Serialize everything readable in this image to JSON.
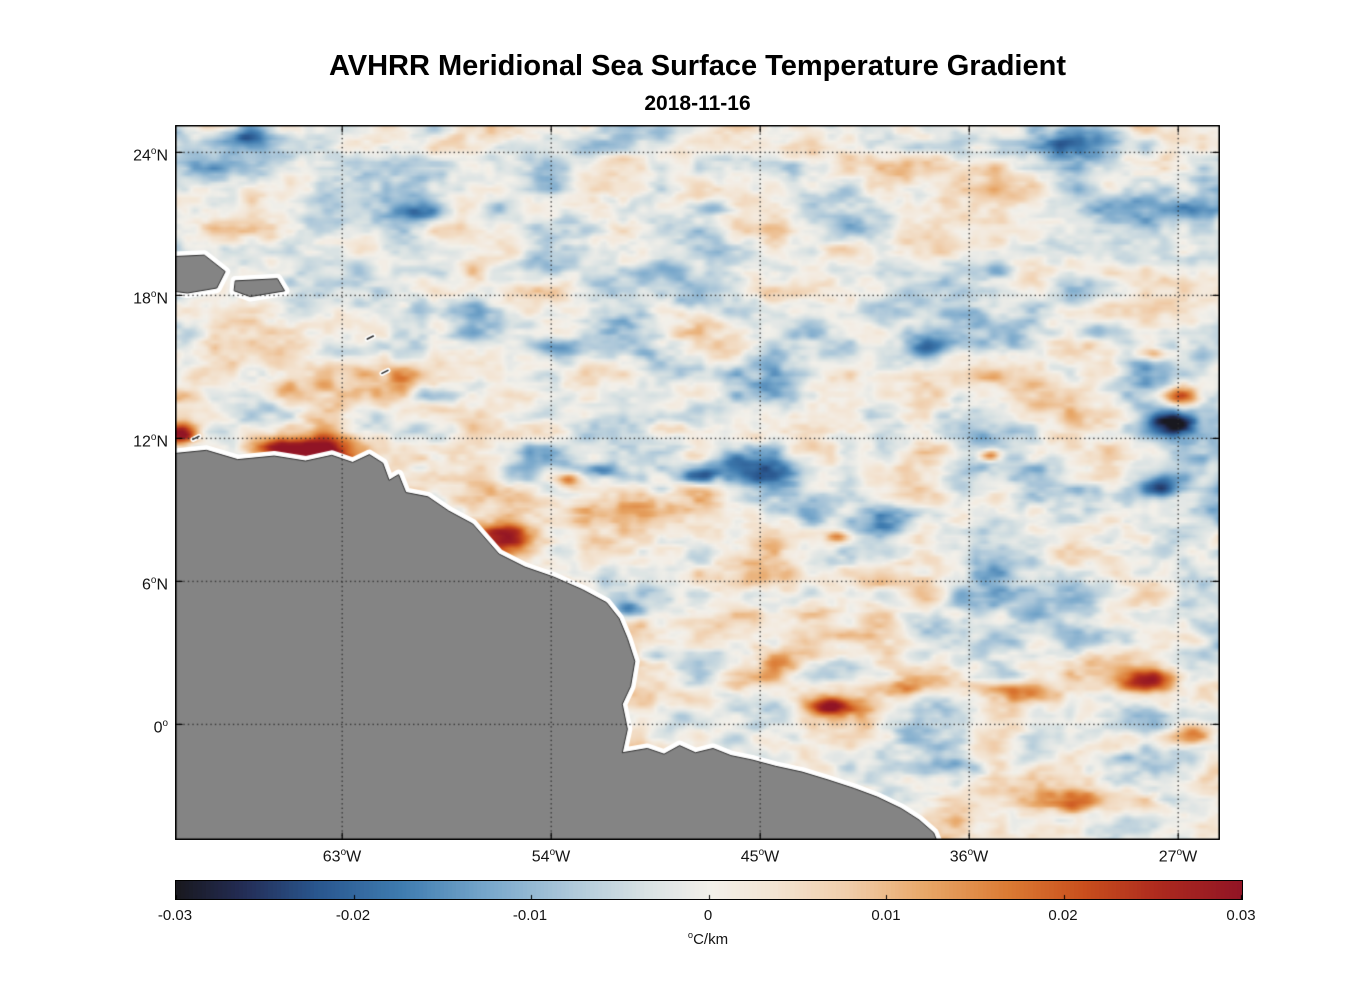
{
  "figure": {
    "title": "AVHRR Meridional Sea Surface Temperature Gradient",
    "subtitle": "2018-11-16"
  },
  "chart_data": {
    "type": "heatmap",
    "title": "AVHRR Meridional Sea Surface Temperature Gradient",
    "subtitle": "2018-11-16",
    "x_axis": {
      "tick_labels": [
        "63°W",
        "54°W",
        "45°W",
        "36°W",
        "27°W"
      ],
      "tick_lon_w": [
        63,
        54,
        45,
        36,
        27
      ],
      "range_lon_w": [
        70.2,
        25.2
      ]
    },
    "y_axis": {
      "tick_labels": [
        "24°N",
        "18°N",
        "12°N",
        "6°N",
        "0°"
      ],
      "tick_lat_n": [
        24,
        18,
        12,
        6,
        0
      ],
      "range_lat_n": [
        25.15,
        -4.85
      ]
    },
    "grid": {
      "style": "dotted",
      "color": "rgba(45,45,45,0.9)"
    },
    "colorbar": {
      "label": "°C/km",
      "min": -0.03,
      "max": 0.03,
      "tick_labels": [
        "-0.03",
        "-0.02",
        "-0.01",
        "0",
        "0.01",
        "0.02",
        "0.03"
      ],
      "stops": [
        [
          0,
          "#191920"
        ],
        [
          0.06,
          "#232c54"
        ],
        [
          0.13,
          "#29568e"
        ],
        [
          0.21,
          "#3f7cb0"
        ],
        [
          0.29,
          "#77a7cb"
        ],
        [
          0.37,
          "#afc9da"
        ],
        [
          0.44,
          "#d9e2e3"
        ],
        [
          0.5,
          "#f3f0ea"
        ],
        [
          0.56,
          "#f3e4d2"
        ],
        [
          0.63,
          "#f0cdaa"
        ],
        [
          0.7,
          "#e8a869"
        ],
        [
          0.78,
          "#db7a33"
        ],
        [
          0.85,
          "#c94f1d"
        ],
        [
          0.92,
          "#ad2a1e"
        ],
        [
          1,
          "#911425"
        ]
      ]
    },
    "land": {
      "fill": "#848484",
      "edge": "#2e2e2e",
      "coast_halo": "#ffffff",
      "polygons": [
        {
          "name": "south-america",
          "lonlat": [
            [
              71,
              11.29
            ],
            [
              68.85,
              11.5
            ],
            [
              67.5,
              11.11
            ],
            [
              65.93,
              11.26
            ],
            [
              64.58,
              11.05
            ],
            [
              63.45,
              11.29
            ],
            [
              62.55,
              10.99
            ],
            [
              61.83,
              11.32
            ],
            [
              61.25,
              10.96
            ],
            [
              60.98,
              10.24
            ],
            [
              60.57,
              10.48
            ],
            [
              60.26,
              9.73
            ],
            [
              59.31,
              9.55
            ],
            [
              58.41,
              8.95
            ],
            [
              57.38,
              8.41
            ],
            [
              56.25,
              7.15
            ],
            [
              55.13,
              6.6
            ],
            [
              53.91,
              6.19
            ],
            [
              52.65,
              5.65
            ],
            [
              51.62,
              5.11
            ],
            [
              51.08,
              4.45
            ],
            [
              50.72,
              3.61
            ],
            [
              50.4,
              2.65
            ],
            [
              50.58,
              1.6
            ],
            [
              50.94,
              0.85
            ],
            [
              50.72,
              -0.2
            ],
            [
              50.94,
              -1.19
            ],
            [
              49.86,
              -1.01
            ],
            [
              49.14,
              -1.25
            ],
            [
              48.47,
              -0.89
            ],
            [
              47.79,
              -1.19
            ],
            [
              47.03,
              -1.01
            ],
            [
              46.26,
              -1.31
            ],
            [
              45.36,
              -1.49
            ],
            [
              44.33,
              -1.76
            ],
            [
              43.2,
              -2.0
            ],
            [
              42.08,
              -2.33
            ],
            [
              40.95,
              -2.69
            ],
            [
              39.96,
              -3.05
            ],
            [
              38.93,
              -3.53
            ],
            [
              38.16,
              -4.01
            ],
            [
              37.53,
              -4.55
            ],
            [
              37.1,
              -5.6
            ],
            [
              71,
              -5.6
            ]
          ]
        },
        {
          "name": "hispaniola",
          "lonlat": [
            [
              70.9,
              19.6
            ],
            [
              68.94,
              19.69
            ],
            [
              68.04,
              19.0
            ],
            [
              68.4,
              18.31
            ],
            [
              69.66,
              18.1
            ],
            [
              70.9,
              18.25
            ]
          ]
        },
        {
          "name": "puerto-rico",
          "lonlat": [
            [
              67.59,
              18.61
            ],
            [
              65.79,
              18.7
            ],
            [
              65.48,
              18.19
            ],
            [
              66.96,
              17.95
            ],
            [
              67.64,
              18.19
            ]
          ]
        }
      ],
      "islets": [
        [
          61.79,
          16.21
        ],
        [
          61.16,
          14.77
        ],
        [
          69.3,
          12.0
        ]
      ]
    },
    "field": {
      "seed": 11,
      "bias": -0.02,
      "noise": [
        [
          14,
          0.3
        ],
        [
          28,
          0.2
        ],
        [
          56,
          0.13
        ],
        [
          110,
          0.08
        ]
      ],
      "feature_fields": [
        "lon_w",
        "lat_n",
        "rx_deg",
        "ry_deg",
        "value_c_per_km"
      ],
      "features": [
        [
          64.4,
          11.5,
          2.2,
          0.55,
          0.029
        ],
        [
          65.9,
          11.7,
          1.3,
          0.45,
          0.016
        ],
        [
          70.0,
          12.2,
          0.6,
          0.35,
          0.024
        ],
        [
          56.2,
          7.6,
          1.6,
          0.9,
          0.027
        ],
        [
          53.2,
          10.3,
          0.55,
          0.3,
          0.016
        ],
        [
          45.7,
          10.7,
          2.4,
          0.75,
          -0.023
        ],
        [
          47.7,
          10.5,
          0.9,
          0.4,
          -0.012
        ],
        [
          39.6,
          8.6,
          1.4,
          0.6,
          -0.018
        ],
        [
          41.7,
          7.9,
          0.55,
          0.28,
          0.018
        ],
        [
          26.9,
          13.8,
          0.8,
          0.4,
          0.027
        ],
        [
          27.3,
          12.7,
          1.0,
          0.5,
          -0.027
        ],
        [
          27.9,
          9.9,
          0.9,
          0.45,
          -0.021
        ],
        [
          67.3,
          24.7,
          1.4,
          0.5,
          -0.016
        ],
        [
          59.2,
          25.0,
          1.0,
          0.4,
          -0.014
        ],
        [
          59.7,
          21.5,
          1.2,
          0.45,
          -0.015
        ],
        [
          56.3,
          21.7,
          1.0,
          0.4,
          -0.013
        ],
        [
          32.6,
          24.4,
          2.5,
          0.65,
          -0.018
        ],
        [
          37.7,
          15.9,
          1.2,
          0.45,
          -0.013
        ],
        [
          30.6,
          16.5,
          1.1,
          0.4,
          -0.011
        ],
        [
          28.1,
          15.6,
          0.7,
          0.3,
          0.013
        ],
        [
          50.7,
          4.8,
          0.7,
          0.32,
          -0.018
        ],
        [
          49.5,
          2.9,
          0.55,
          0.28,
          -0.012
        ],
        [
          42.1,
          0.8,
          1.1,
          0.4,
          0.024
        ],
        [
          39.0,
          1.5,
          1.4,
          0.35,
          0.013
        ],
        [
          34.2,
          1.5,
          1.6,
          0.4,
          0.014
        ],
        [
          28.3,
          1.8,
          1.4,
          0.45,
          0.018
        ],
        [
          26.3,
          -0.4,
          0.9,
          0.4,
          0.015
        ],
        [
          31.0,
          -3.2,
          2.1,
          0.5,
          0.017
        ],
        [
          36.6,
          -1.7,
          1.1,
          0.38,
          -0.014
        ],
        [
          35.1,
          11.3,
          0.5,
          0.25,
          0.022
        ],
        [
          51.9,
          10.7,
          0.7,
          0.28,
          -0.011
        ],
        [
          42.3,
          3.6,
          4.5,
          0.6,
          0.008
        ],
        [
          59.2,
          13.8,
          0.9,
          0.35,
          -0.01
        ],
        [
          53.8,
          15.9,
          1.0,
          0.4,
          -0.009
        ],
        [
          46.8,
          21.7,
          0.9,
          0.35,
          -0.01
        ],
        [
          49.8,
          12.4,
          1.5,
          0.3,
          0.009
        ],
        [
          25.8,
          3.6,
          1.0,
          0.45,
          0.011
        ]
      ]
    }
  }
}
